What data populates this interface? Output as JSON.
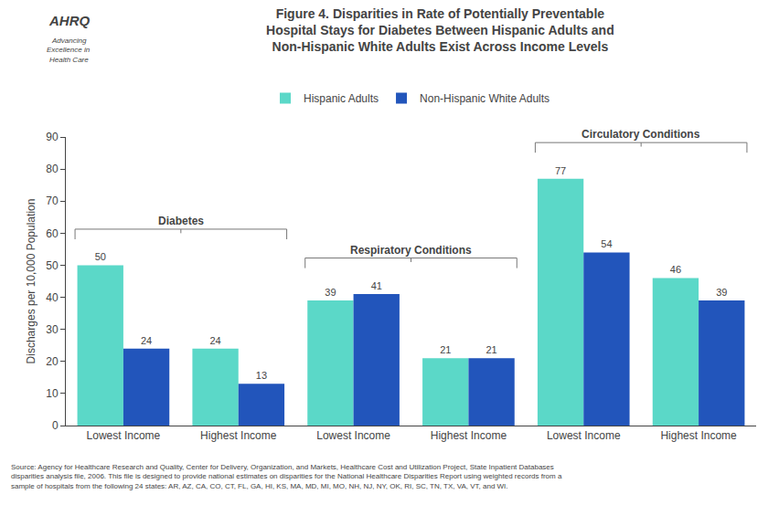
{
  "chart_data": {
    "type": "bar",
    "title": "Figure 4. Disparities in Rate of Potentially Preventable\nHospital Stays for Diabetes Between Hispanic Adults and\nNon-Hispanic White Adults Exist Across Income Levels",
    "ylabel": "Discharges per 10,000 Population",
    "categories": [
      "Lowest Income",
      "Highest Income",
      "Lowest Income",
      "Highest Income",
      "Lowest Income",
      "Highest Income"
    ],
    "series": [
      {
        "name": "Hispanic Adults",
        "color": "#5BD8C8",
        "values": [
          50,
          24,
          39,
          21,
          77,
          46
        ]
      },
      {
        "name": "Non-Hispanic White Adults",
        "color": "#2255BB",
        "values": [
          24,
          13,
          41,
          21,
          54,
          39
        ]
      }
    ],
    "annotations": [
      "Diabetes",
      "Respiratory Conditions",
      "Circulatory Conditions"
    ],
    "source": "Source: Agency for Healthcare Research and Quality, Center for Delivery, Organization, and Markets, Healthcare Cost and Utilization Project, State Inpatient Databases\ndisparities analysis file, 2006. This file is designed to provide national estimates on disparities for the National Healthcare Disparities Report using weighted records from a\nsample of hospitals from the following 24 states: AR, AZ, CA, CO, CT, FL, GA, HI, KS, MA, MD, MI, MO, NH, NJ, NY, OK, RI, SC, TN, TX, VA, VT, and WI.",
    "logo": [
      "AHRQ",
      "Advancing",
      "Excellence in",
      "Health Care"
    ],
    "ylim": [
      0,
      90
    ],
    "yticks": [
      0,
      10,
      20,
      30,
      40,
      50,
      60,
      70,
      80,
      90
    ],
    "grid": false,
    "legend": "top",
    "data_labels": true
  }
}
